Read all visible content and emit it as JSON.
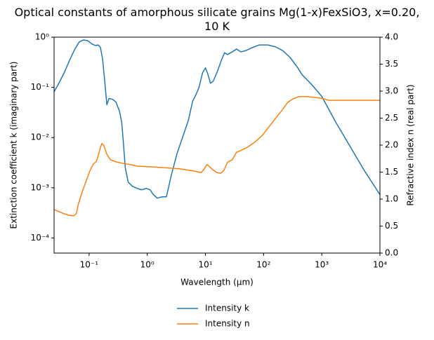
{
  "chart_data": {
    "type": "line",
    "title": "Optical constants of amorphous silicate grains Mg(1-x)FexSiO3, x=0.20,\n10 K",
    "xlabel": "Wavelength (μm)",
    "ylabel": "Extinction coefficient k (imaginary part)",
    "y2label": "Refractive index n (real part)",
    "xscale": "log",
    "yscale": "log",
    "xlim": [
      0.025,
      10000
    ],
    "ylim": [
      5e-05,
      1
    ],
    "y2lim": [
      0,
      4
    ],
    "xticks": [
      {
        "value": 0.1,
        "label": "10⁻¹"
      },
      {
        "value": 1,
        "label": "10⁰"
      },
      {
        "value": 10,
        "label": "10¹"
      },
      {
        "value": 100,
        "label": "10²"
      },
      {
        "value": 1000,
        "label": "10³"
      },
      {
        "value": 10000,
        "label": "10⁴"
      }
    ],
    "yticks": [
      {
        "value": 0.0001,
        "label": "10⁻⁴"
      },
      {
        "value": 0.001,
        "label": "10⁻³"
      },
      {
        "value": 0.01,
        "label": "10⁻²"
      },
      {
        "value": 0.1,
        "label": "10⁻¹"
      },
      {
        "value": 1,
        "label": "10⁰"
      }
    ],
    "y2ticks": [
      {
        "value": 0,
        "label": "0.0"
      },
      0.5,
      {
        "value": 1,
        "label": "1.0"
      },
      1.5,
      {
        "value": 2,
        "label": "2.0"
      },
      2.5,
      {
        "value": 3,
        "label": "3.0"
      },
      3.5,
      {
        "value": 4,
        "label": "4.0"
      }
    ],
    "legend": "lower center",
    "series": [
      {
        "name": "Intensity k",
        "color": "#1f77b4",
        "axis": "y",
        "x": [
          0.0252,
          0.0307,
          0.0374,
          0.0469,
          0.057,
          0.0675,
          0.0798,
          0.0946,
          0.112,
          0.129,
          0.144,
          0.157,
          0.171,
          0.185,
          0.202,
          0.22,
          0.252,
          0.29,
          0.334,
          0.364,
          0.385,
          0.419,
          0.469,
          0.555,
          0.675,
          0.798,
          0.97,
          1.12,
          1.25,
          1.48,
          1.8,
          2.13,
          2.6,
          3.25,
          4.07,
          5.09,
          6.03,
          6.94,
          7.76,
          8.94,
          10.0,
          10.9,
          12.2,
          13.6,
          16.1,
          18.5,
          21.3,
          23.9,
          29.0,
          34.4,
          40.7,
          49.6,
          63.8,
          84.5,
          118,
          161,
          213,
          282,
          374,
          456,
          656,
          1000,
          1750,
          3080,
          5390,
          10000
        ],
        "values": [
          0.0826,
          0.125,
          0.196,
          0.36,
          0.58,
          0.8,
          0.88,
          0.85,
          0.73,
          0.68,
          0.7,
          0.62,
          0.36,
          0.138,
          0.045,
          0.06,
          0.058,
          0.051,
          0.033,
          0.02,
          0.0091,
          0.0025,
          0.0013,
          0.00107,
          0.00097,
          0.00091,
          0.00097,
          0.00091,
          0.00075,
          0.00062,
          0.00066,
          0.00066,
          0.0018,
          0.0048,
          0.0103,
          0.022,
          0.053,
          0.073,
          0.1,
          0.196,
          0.245,
          0.19,
          0.121,
          0.133,
          0.209,
          0.33,
          0.49,
          0.45,
          0.51,
          0.58,
          0.51,
          0.54,
          0.62,
          0.7,
          0.7,
          0.64,
          0.54,
          0.4,
          0.26,
          0.18,
          0.117,
          0.066,
          0.02,
          0.0066,
          0.0022,
          0.00073
        ]
      },
      {
        "name": "Intensity n",
        "color": "#ff7f0e",
        "axis": "y2",
        "x": [
          0.0252,
          0.0307,
          0.0374,
          0.0455,
          0.0539,
          0.0604,
          0.0658,
          0.0755,
          0.0892,
          0.103,
          0.118,
          0.132,
          0.144,
          0.157,
          0.166,
          0.18,
          0.202,
          0.232,
          0.29,
          0.385,
          0.51,
          0.675,
          1.03,
          2.07,
          3.64,
          6.38,
          8.44,
          9.44,
          10.6,
          11.8,
          13.2,
          15.7,
          18.5,
          20.7,
          23.9,
          29.0,
          34.4,
          40.7,
          52.5,
          69.6,
          94.9,
          126,
          167,
          213,
          259,
          325,
          406,
          572,
          801,
          1060,
          1330,
          2320,
          10000
        ],
        "values": [
          0.805,
          0.766,
          0.727,
          0.7,
          0.69,
          0.73,
          0.92,
          1.12,
          1.34,
          1.52,
          1.65,
          1.69,
          1.81,
          1.96,
          2.03,
          1.99,
          1.83,
          1.73,
          1.69,
          1.66,
          1.64,
          1.61,
          1.6,
          1.58,
          1.56,
          1.52,
          1.49,
          1.55,
          1.64,
          1.6,
          1.55,
          1.49,
          1.48,
          1.53,
          1.68,
          1.73,
          1.87,
          1.9,
          1.96,
          2.05,
          2.18,
          2.35,
          2.52,
          2.66,
          2.79,
          2.86,
          2.9,
          2.9,
          2.88,
          2.86,
          2.83,
          2.83,
          2.83
        ]
      }
    ]
  }
}
